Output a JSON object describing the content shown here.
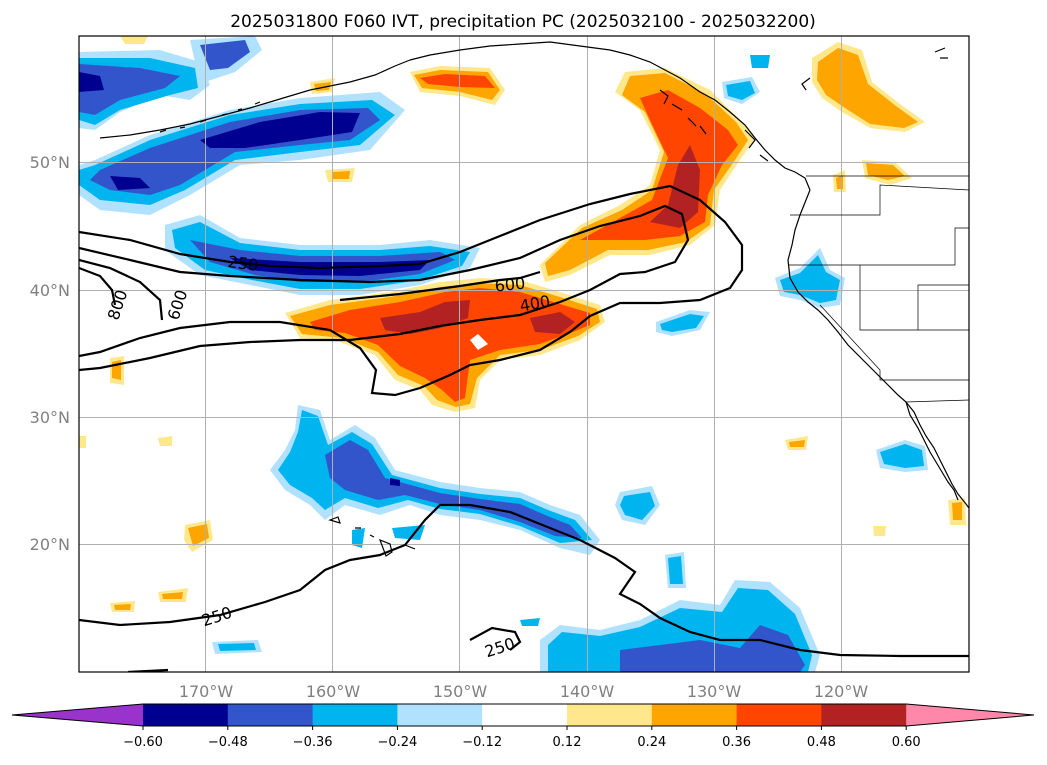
{
  "title": "2025031800 F060 IVT, precipitation PC (2025032100 - 2025032200)",
  "colors": {
    "frame": "#000000",
    "grid": "#b0b0b0",
    "coast": "#000000",
    "contour": "#000000"
  },
  "chart_data": {
    "type": "heatmap",
    "title": "2025031800 F060 IVT, precipitation PC (2025032100 - 2025032200)",
    "map_extent": {
      "lon": [
        -180,
        -110
      ],
      "lat": [
        10,
        60
      ]
    },
    "grid": true,
    "lat_ticks": [
      {
        "value": 50,
        "label": "50°N"
      },
      {
        "value": 40,
        "label": "40°N"
      },
      {
        "value": 30,
        "label": "30°N"
      },
      {
        "value": 20,
        "label": "20°N"
      }
    ],
    "lon_ticks": [
      {
        "value": -170,
        "label": "170°W"
      },
      {
        "value": -160,
        "label": "160°W"
      },
      {
        "value": -150,
        "label": "150°W"
      },
      {
        "value": -140,
        "label": "140°W"
      },
      {
        "value": -130,
        "label": "130°W"
      },
      {
        "value": -120,
        "label": "120°W"
      }
    ],
    "colorbar": {
      "orientation": "horizontal",
      "extend": "both",
      "levels": [
        -0.6,
        -0.48,
        -0.36,
        -0.24,
        -0.12,
        0.12,
        0.24,
        0.36,
        0.48,
        0.6
      ],
      "tick_labels": [
        "−0.60",
        "−0.48",
        "−0.36",
        "−0.24",
        "−0.12",
        "0.12",
        "0.24",
        "0.36",
        "0.48",
        "0.60"
      ],
      "colors": [
        "#9933cc",
        "#000090",
        "#3355cc",
        "#00b4f0",
        "#b0e2ff",
        "#ffffff",
        "#ffe88c",
        "#ffa500",
        "#ff4500",
        "#b22222",
        "#ff88aa"
      ]
    },
    "contour_labels": [
      {
        "text": "250",
        "lon": -166,
        "lat": 42
      },
      {
        "text": "600",
        "lon": -145.8,
        "lat": 40.5
      },
      {
        "text": "400",
        "lon": -143.9,
        "lat": 38.9
      },
      {
        "text": "800",
        "lon": -176.9,
        "lat": 39
      },
      {
        "text": "600",
        "lon": -172.8,
        "lat": 39
      },
      {
        "text": "250",
        "lon": -171.9,
        "lat": 13.2
      },
      {
        "text": "250",
        "lon": -147,
        "lat": 11.9
      }
    ]
  }
}
